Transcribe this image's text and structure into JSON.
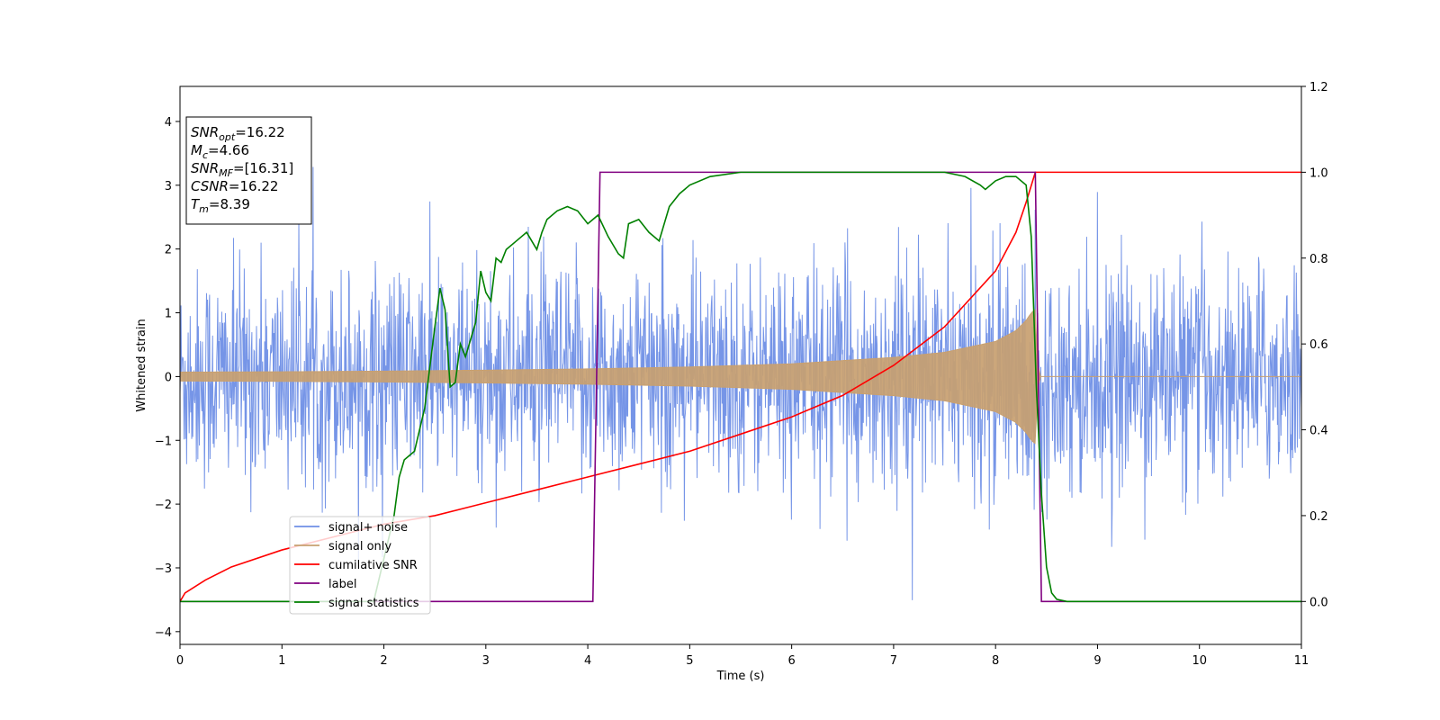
{
  "chart_data": {
    "type": "line",
    "xlabel": "Time (s)",
    "ylabel_left": "Whitened strain",
    "ylabel_right": "",
    "xlim": [
      0,
      11
    ],
    "ylim_left": [
      -4.2,
      4.55
    ],
    "ylim_right": [
      -0.1,
      1.2
    ],
    "x_ticks": [
      0,
      1,
      2,
      3,
      4,
      5,
      6,
      7,
      8,
      9,
      10,
      11
    ],
    "x_tick_labels": [
      "0",
      "1",
      "2",
      "3",
      "4",
      "5",
      "6",
      "7",
      "8",
      "9",
      "10",
      "11"
    ],
    "y_left_ticks": [
      -4,
      -3,
      -2,
      -1,
      0,
      1,
      2,
      3,
      4
    ],
    "y_left_tick_labels": [
      "−4",
      "−3",
      "−2",
      "−1",
      "0",
      "1",
      "2",
      "3",
      "4"
    ],
    "y_right_ticks": [
      0.0,
      0.2,
      0.4,
      0.6,
      0.8,
      1.0,
      1.2
    ],
    "y_right_tick_labels": [
      "0.0",
      "0.2",
      "0.4",
      "0.6",
      "0.8",
      "1.0",
      "1.2"
    ],
    "grid": false,
    "legend_position": "lower-left",
    "info_box": {
      "lines": [
        {
          "sym": "SNR",
          "sub": "opt",
          "value": "=16.22"
        },
        {
          "sym": "M",
          "sub": "c",
          "value": "=4.66"
        },
        {
          "sym": "SNR",
          "sub": "MF",
          "value": "=[16.31]"
        },
        {
          "sym": "CSNR",
          "sub": "",
          "value": "=16.22"
        },
        {
          "sym": "T",
          "sub": "m",
          "value": "=8.39"
        }
      ]
    },
    "series": [
      {
        "name": "signal+ noise",
        "axis": "left",
        "color": "#6f8fe6",
        "kind": "noise",
        "noise_std": 0.85,
        "x_range": [
          0,
          11
        ],
        "sample_count": 2200
      },
      {
        "name": "signal only",
        "axis": "left",
        "color": "#c8a070",
        "kind": "chirp_envelope",
        "x": [
          0,
          1,
          2,
          3,
          4,
          5,
          6,
          7,
          7.5,
          8,
          8.2,
          8.3,
          8.35,
          8.39,
          8.42,
          11
        ],
        "amplitude": [
          0.07,
          0.075,
          0.085,
          0.1,
          0.12,
          0.15,
          0.2,
          0.3,
          0.38,
          0.55,
          0.72,
          0.88,
          1.0,
          1.05,
          0.0,
          0.0
        ]
      },
      {
        "name": "cumilative SNR",
        "axis": "right",
        "color": "#ff0000",
        "x": [
          0,
          0.05,
          0.25,
          0.5,
          1,
          1.5,
          2,
          2.5,
          3,
          3.5,
          4,
          4.5,
          5,
          5.5,
          6,
          6.5,
          7,
          7.5,
          8,
          8.2,
          8.3,
          8.39,
          11
        ],
        "y": [
          0.0,
          0.02,
          0.05,
          0.08,
          0.12,
          0.15,
          0.18,
          0.2,
          0.23,
          0.26,
          0.29,
          0.32,
          0.35,
          0.39,
          0.43,
          0.48,
          0.55,
          0.64,
          0.77,
          0.86,
          0.93,
          1.0,
          1.0
        ]
      },
      {
        "name": "label",
        "axis": "right",
        "color": "#800080",
        "x": [
          0,
          4.05,
          4.12,
          8.39,
          8.45,
          11
        ],
        "y": [
          0.0,
          0.0,
          1.0,
          1.0,
          0.0,
          0.0
        ]
      },
      {
        "name": "signal statistics",
        "axis": "right",
        "color": "#008000",
        "x": [
          0,
          1.9,
          2.0,
          2.1,
          2.15,
          2.2,
          2.3,
          2.4,
          2.5,
          2.55,
          2.6,
          2.65,
          2.7,
          2.75,
          2.8,
          2.9,
          2.95,
          3.0,
          3.05,
          3.1,
          3.15,
          3.2,
          3.3,
          3.4,
          3.45,
          3.5,
          3.55,
          3.6,
          3.7,
          3.8,
          3.9,
          4.0,
          4.1,
          4.2,
          4.3,
          4.35,
          4.4,
          4.5,
          4.6,
          4.7,
          4.8,
          4.9,
          5.0,
          5.2,
          5.5,
          6.0,
          6.5,
          7.0,
          7.5,
          7.7,
          7.85,
          7.9,
          8.0,
          8.1,
          8.2,
          8.3,
          8.35,
          8.4,
          8.45,
          8.5,
          8.55,
          8.6,
          8.7,
          9.0,
          11
        ],
        "y": [
          0.0,
          0.0,
          0.1,
          0.2,
          0.29,
          0.33,
          0.35,
          0.45,
          0.64,
          0.73,
          0.68,
          0.5,
          0.51,
          0.6,
          0.57,
          0.65,
          0.77,
          0.72,
          0.7,
          0.8,
          0.79,
          0.82,
          0.84,
          0.86,
          0.84,
          0.82,
          0.86,
          0.89,
          0.91,
          0.92,
          0.91,
          0.88,
          0.9,
          0.85,
          0.81,
          0.8,
          0.88,
          0.89,
          0.86,
          0.84,
          0.92,
          0.95,
          0.97,
          0.99,
          1.0,
          1.0,
          1.0,
          1.0,
          1.0,
          0.99,
          0.97,
          0.96,
          0.98,
          0.99,
          0.99,
          0.97,
          0.85,
          0.5,
          0.25,
          0.08,
          0.02,
          0.005,
          0.0,
          0.0,
          0.0
        ]
      }
    ]
  }
}
